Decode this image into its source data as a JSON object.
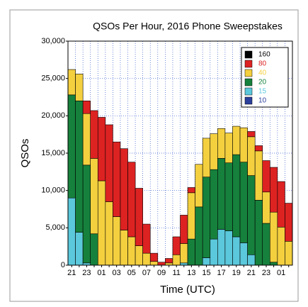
{
  "chart_data": {
    "type": "stacked_bar",
    "title": "QSOs Per Hour, 2016 Phone Sweepstakes",
    "x_label": "Time (UTC)",
    "y_label": "QSOs",
    "categories": [
      "21",
      null,
      "23",
      null,
      "01",
      null,
      "03",
      null,
      "05",
      null,
      "07",
      null,
      "09",
      null,
      "11",
      null,
      "13",
      null,
      "15",
      null,
      "17",
      null,
      "19",
      null,
      "21",
      null,
      "23",
      null,
      "01",
      null
    ],
    "series": [
      {
        "name": "10",
        "color": "#2b3f9c",
        "values": [
          0,
          0,
          0,
          0,
          0,
          0,
          0,
          0,
          0,
          0,
          0,
          0,
          0,
          0,
          0,
          0,
          0,
          0,
          0,
          0,
          0,
          0,
          0,
          0,
          0,
          0,
          0,
          0,
          0,
          0
        ]
      },
      {
        "name": "15",
        "color": "#5bc8dc",
        "values": [
          9000,
          4400,
          300,
          0,
          0,
          0,
          0,
          0,
          0,
          0,
          0,
          0,
          0,
          0,
          0,
          300,
          0,
          0,
          1000,
          3500,
          4800,
          4600,
          3800,
          3000,
          1400,
          0,
          0,
          0,
          0,
          0
        ]
      },
      {
        "name": "20",
        "color": "#16813c",
        "values": [
          13800,
          17600,
          13100,
          4200,
          0,
          0,
          0,
          0,
          0,
          0,
          0,
          0,
          0,
          0,
          0,
          0,
          3500,
          7800,
          10800,
          9300,
          9500,
          9100,
          11000,
          10800,
          10600,
          8700,
          5600,
          400,
          0,
          0
        ]
      },
      {
        "name": "40",
        "color": "#f4d03f",
        "values": [
          3400,
          3600,
          6900,
          10100,
          11300,
          8500,
          6500,
          4700,
          3800,
          2600,
          1600,
          500,
          0,
          300,
          1400,
          2600,
          6200,
          5700,
          5200,
          4800,
          4000,
          4000,
          3800,
          4600,
          5200,
          6600,
          4200,
          6700,
          5100,
          3200
        ]
      },
      {
        "name": "80",
        "color": "#dd2222",
        "values": [
          0,
          0,
          1700,
          6400,
          8500,
          10300,
          10000,
          10900,
          10000,
          7700,
          3900,
          1100,
          400,
          600,
          2400,
          3800,
          700,
          0,
          0,
          0,
          0,
          0,
          0,
          0,
          700,
          700,
          4200,
          6000,
          6100,
          5100
        ]
      },
      {
        "name": "160",
        "color": "#000000",
        "values": [
          0,
          0,
          0,
          0,
          0,
          0,
          0,
          0,
          0,
          0,
          0,
          0,
          0,
          0,
          0,
          0,
          0,
          0,
          0,
          0,
          0,
          0,
          0,
          0,
          0,
          0,
          0,
          0,
          0,
          0
        ]
      }
    ],
    "ylim": [
      0,
      30000
    ],
    "yticks": [
      0,
      {
        "value": 5000,
        "label": "5,000"
      },
      {
        "value": 10000,
        "label": "10,000"
      },
      {
        "value": 15000,
        "label": "15,000"
      },
      {
        "value": 20000,
        "label": "20,000"
      },
      {
        "value": 25000,
        "label": "25,000"
      },
      {
        "value": 30000,
        "label": "30,000"
      }
    ],
    "grid": true,
    "legend": "upper right"
  }
}
